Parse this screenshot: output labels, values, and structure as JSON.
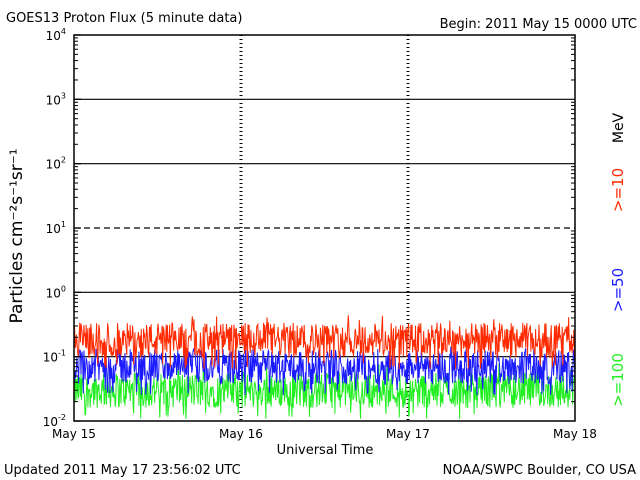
{
  "header": {
    "title": "GOES13 Proton Flux (5 minute data)",
    "begin": "Begin: 2011 May 15 0000 UTC"
  },
  "footer": {
    "updated": "Updated 2011 May 17 23:56:02 UTC",
    "credit": "NOAA/SWPC Boulder, CO USA"
  },
  "chart_data": {
    "type": "line",
    "title": "GOES13 Proton Flux (5 minute data)",
    "xlabel": "Universal Time",
    "ylabel": "Particles cm⁻²s⁻¹sr⁻¹",
    "y_scale": "log",
    "ylim": [
      0.01,
      10000
    ],
    "y_ticks": [
      {
        "value": 0.01,
        "base": "10",
        "exp": "-2"
      },
      {
        "value": 0.1,
        "base": "10",
        "exp": "-1"
      },
      {
        "value": 1,
        "base": "10",
        "exp": "0"
      },
      {
        "value": 10,
        "base": "10",
        "exp": "1"
      },
      {
        "value": 100,
        "base": "10",
        "exp": "2"
      },
      {
        "value": 1000,
        "base": "10",
        "exp": "3"
      },
      {
        "value": 10000,
        "base": "10",
        "exp": "4"
      }
    ],
    "x_ticks": [
      "May 15",
      "May 16",
      "May 17",
      "May 18"
    ],
    "xlim": [
      "2011-05-15T00:00",
      "2011-05-18T00:00"
    ],
    "unit_label": "MeV",
    "grid": true,
    "legend_position": "right",
    "series": [
      {
        "name": ">=10",
        "color": "#ff2a00",
        "typical": 0.18,
        "peak": 0.45
      },
      {
        "name": ">=50",
        "color": "#1a1aff",
        "typical": 0.07,
        "peak": 0.15
      },
      {
        "name": ">=100",
        "color": "#22ee22",
        "typical": 0.03,
        "peak": 0.08
      }
    ]
  }
}
